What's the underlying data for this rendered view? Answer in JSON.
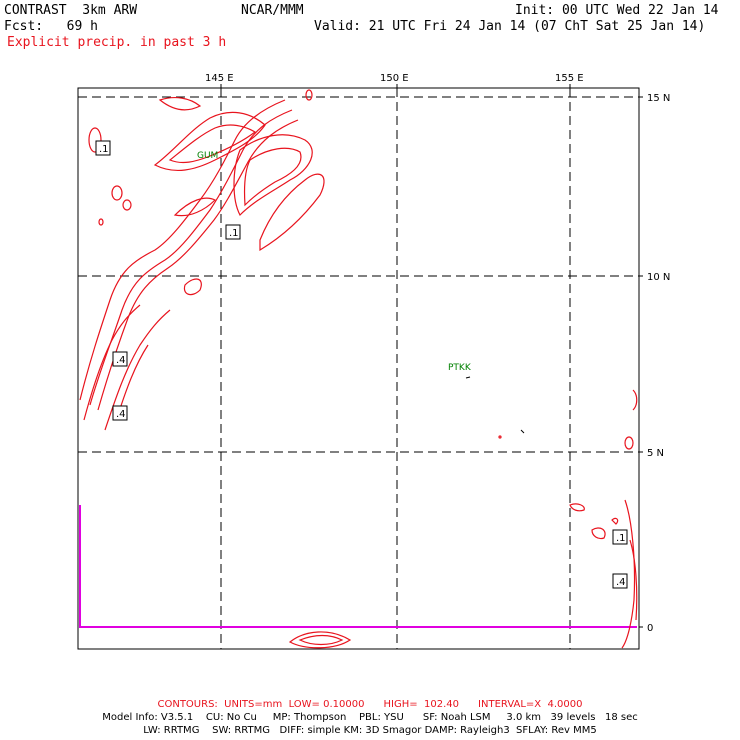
{
  "header": {
    "product": "CONTRAST  3km ARW",
    "org": "NCAR/MMM",
    "init": "Init: 00 UTC Wed 22 Jan 14",
    "fcst": "Fcst:   69 h",
    "valid": "Valid: 21 UTC Fri 24 Jan 14 (07 ChT Sat 25 Jan 14)",
    "field": "Explicit precip. in past 3 h"
  },
  "map": {
    "lon_labels": [
      "145 E",
      "150 E",
      "155 E"
    ],
    "lat_labels": [
      "15 N",
      "10 N",
      "5 N",
      "0"
    ],
    "station": "PTKK",
    "station_marker": "GUM",
    "contour_labels": [
      ".1",
      ".1",
      ".4",
      ".4",
      ".1",
      ".4"
    ],
    "contour_color": "#e8141e",
    "boundary_color": "#e000e0",
    "station_color": "#008000"
  },
  "footer": {
    "contours": "CONTOURS:  UNITS=mm  LOW= 0.10000      HIGH=  102.40      INTERVAL=X  4.0000",
    "model_line1": "Model Info: V3.5.1    CU: No Cu     MP: Thompson    PBL: YSU      SF: Noah LSM     3.0 km   39 levels   18 sec",
    "model_line2": "LW: RRTMG    SW: RRTMG   DIFF: simple KM: 3D Smagor DAMP: Rayleigh3  SFLAY: Rev MM5"
  }
}
